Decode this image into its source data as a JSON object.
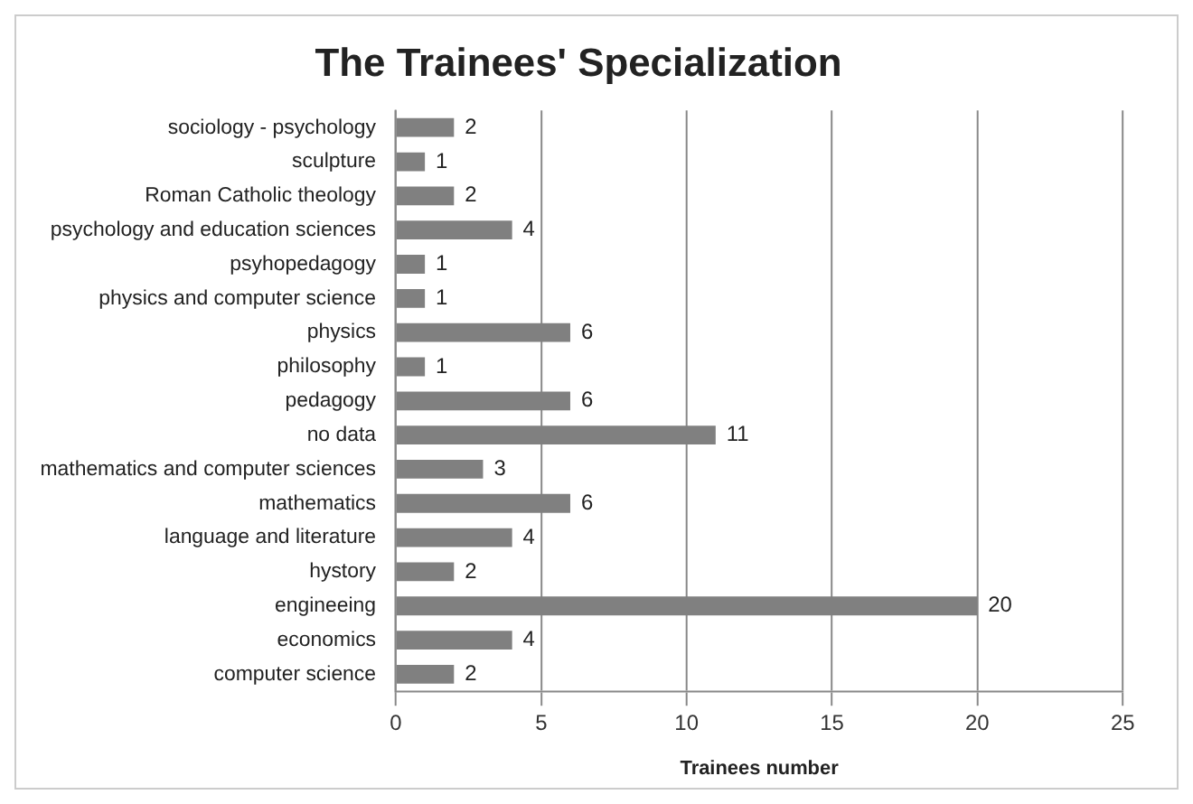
{
  "chart_data": {
    "type": "bar",
    "orientation": "horizontal",
    "title": "The Trainees' Specialization",
    "xlabel": "Trainees number",
    "categories": [
      "sociology - psychology",
      "sculpture",
      "Roman Catholic theology",
      "psychology and education sciences",
      "psyhopedagogy",
      "physics and computer science",
      "physics",
      "philosophy",
      "pedagogy",
      "no data",
      "mathematics and computer sciences",
      "mathematics",
      "language and literature",
      "hystory",
      "engineeing",
      "economics",
      "computer science"
    ],
    "values": [
      2,
      1,
      2,
      4,
      1,
      1,
      6,
      1,
      6,
      11,
      3,
      6,
      4,
      2,
      20,
      4,
      2
    ],
    "color": "#808080",
    "xlim": [
      0,
      25
    ],
    "xticks": [
      0,
      5,
      10,
      15,
      20,
      25
    ],
    "grid": "x",
    "data_labels": true,
    "legend": false
  }
}
